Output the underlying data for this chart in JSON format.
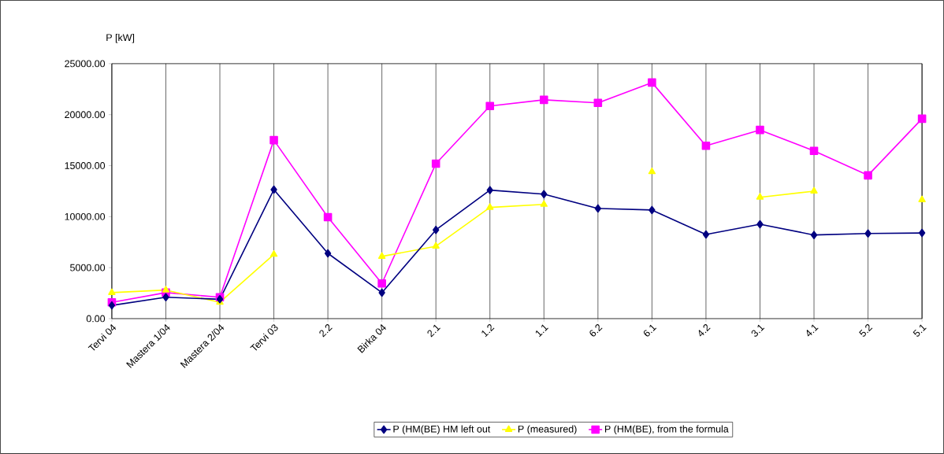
{
  "chart_data": {
    "type": "line",
    "ylabel": "P [kW]",
    "categories": [
      "Tervi 04",
      "Mastera 1/04",
      "Mastera 2/04",
      "Tervi 03",
      "2.2",
      "Birka 04",
      "2.1",
      "1.2",
      "1.1",
      "6.2",
      "6.1",
      "4.2",
      "3.1",
      "4.1",
      "5.2",
      "5.1"
    ],
    "series": [
      {
        "name": "P (HM(BE) HM left out",
        "color": "#000080",
        "marker": "diamond",
        "values": [
          1300,
          2100,
          1900,
          12650,
          6400,
          2550,
          8700,
          12600,
          12200,
          10800,
          10650,
          8250,
          9250,
          8200,
          8350,
          8400
        ]
      },
      {
        "name": "P (measured)",
        "color": "#ffff00",
        "marker": "triangle",
        "values": [
          2550,
          2800,
          1600,
          6300,
          null,
          6100,
          7100,
          10900,
          11200,
          null,
          14400,
          null,
          11900,
          12500,
          null,
          11650
        ]
      },
      {
        "name": "P (HM(BE), from the formula",
        "color": "#ff00ff",
        "marker": "square",
        "values": [
          1600,
          2550,
          2100,
          17500,
          9950,
          3450,
          15200,
          20850,
          21450,
          21150,
          23150,
          16950,
          18500,
          16450,
          14050,
          19600
        ]
      }
    ],
    "ylim": [
      0,
      25000
    ],
    "yticks": [
      {
        "value": 0,
        "label": "0.00"
      },
      {
        "value": 5000,
        "label": "5000.00"
      },
      {
        "value": 10000,
        "label": "10000.00"
      },
      {
        "value": 15000,
        "label": "15000.00"
      },
      {
        "value": 20000,
        "label": "20000.00"
      },
      {
        "value": 25000,
        "label": "25000.00"
      }
    ],
    "grid": "x",
    "legend": "bottom",
    "line_style": "solid"
  }
}
